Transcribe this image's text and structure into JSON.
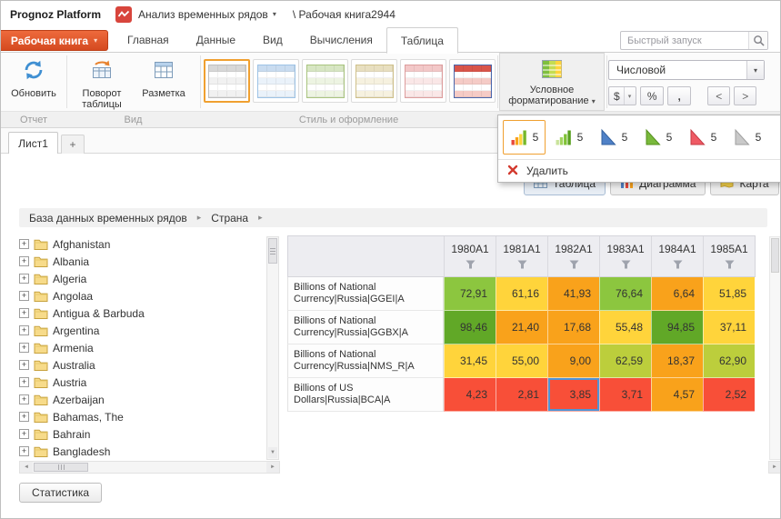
{
  "topbar": {
    "app_title": "Prognoz Platform",
    "module_menu": "Анализ временных рядов",
    "document_path": "\\ Рабочая книга2944"
  },
  "tab_bar": {
    "workbook_button": "Рабочая книга",
    "tabs": [
      {
        "label": "Главная",
        "active": false
      },
      {
        "label": "Данные",
        "active": false
      },
      {
        "label": "Вид",
        "active": false
      },
      {
        "label": "Вычисления",
        "active": false
      },
      {
        "label": "Таблица",
        "active": true
      }
    ],
    "search_placeholder": "Быстрый запуск"
  },
  "ribbon": {
    "refresh_label": "Обновить",
    "pivot_label": "Поворот таблицы",
    "layout_label": "Разметка",
    "conditional_label": "Условное форматирование",
    "group_labels": [
      "Отчет",
      "Вид",
      "Стиль и оформление"
    ],
    "style_gallery": [
      {
        "name": "gray",
        "selected": true,
        "header": "#d8d8d8",
        "row": "#f1f1f1",
        "accent": "#bfbfbf"
      },
      {
        "name": "blue",
        "selected": false,
        "header": "#c9dcf0",
        "row": "#eaf2fa",
        "accent": "#9dc3e6"
      },
      {
        "name": "green",
        "selected": false,
        "header": "#d7e6c3",
        "row": "#edf4e2",
        "accent": "#a9c47f"
      },
      {
        "name": "beige",
        "selected": false,
        "header": "#e8dfc0",
        "row": "#f6f1df",
        "accent": "#cfc08a"
      },
      {
        "name": "pink",
        "selected": false,
        "header": "#f3c8c8",
        "row": "#fae7e7",
        "accent": "#dd9d9d"
      },
      {
        "name": "red",
        "selected": false,
        "header": "#d9554a",
        "row": "#f5cbc6",
        "accent": "#4a66ac"
      }
    ],
    "number_format": {
      "selected_format": "Числовой",
      "currency_label": "$",
      "percent_label": "%",
      "separator_label": ",",
      "decrease_label": "<",
      "increase_label": ">"
    }
  },
  "cf_dropdown": {
    "items": [
      {
        "count": "5",
        "icon": "bars-traffic-icon",
        "selected": true
      },
      {
        "count": "5",
        "icon": "bars-green-icon",
        "selected": false
      },
      {
        "count": "5",
        "icon": "cone-blue-icon",
        "selected": false
      },
      {
        "count": "5",
        "icon": "cone-green-icon",
        "selected": false
      },
      {
        "count": "5",
        "icon": "cone-red-icon",
        "selected": false
      },
      {
        "count": "5",
        "icon": "cone-gray-icon",
        "selected": false
      }
    ],
    "delete_label": "Удалить"
  },
  "sheet_bar": {
    "active_tab": "Лист1",
    "add_tab": "+"
  },
  "view_switcher": [
    {
      "label": "Таблица",
      "selected": true
    },
    {
      "label": "Диаграмма",
      "selected": false
    },
    {
      "label": "Карта",
      "selected": false
    }
  ],
  "breadcrumb": [
    "База данных временных рядов",
    "Страна"
  ],
  "tree": [
    "Afghanistan",
    "Albania",
    "Algeria",
    "Angolaa",
    "Antigua & Barbuda",
    "Argentina",
    "Armenia",
    "Australia",
    "Austria",
    "Azerbaijan",
    "Bahamas, The",
    "Bahrain",
    "Bangladesh"
  ],
  "table": {
    "columns": [
      "1980A1",
      "1981A1",
      "1982A1",
      "1983A1",
      "1984A1",
      "1985A1"
    ],
    "rows": [
      {
        "label": "Billions of National Currency|Russia|GGEI|A",
        "cells": [
          {
            "value": "72,91",
            "bg": "#8cc63f"
          },
          {
            "value": "61,16",
            "bg": "#ffd43b"
          },
          {
            "value": "41,93",
            "bg": "#f9a21b"
          },
          {
            "value": "76,64",
            "bg": "#8cc63f"
          },
          {
            "value": "6,64",
            "bg": "#f9a21b"
          },
          {
            "value": "51,85",
            "bg": "#ffd43b"
          }
        ]
      },
      {
        "label": "Billions of National Currency|Russia|GGBX|A",
        "cells": [
          {
            "value": "98,46",
            "bg": "#61a827"
          },
          {
            "value": "21,40",
            "bg": "#f9a21b"
          },
          {
            "value": "17,68",
            "bg": "#f9a21b"
          },
          {
            "value": "55,48",
            "bg": "#ffd43b"
          },
          {
            "value": "94,85",
            "bg": "#61a827"
          },
          {
            "value": "37,11",
            "bg": "#ffd43b"
          }
        ]
      },
      {
        "label": "Billions of National Currency|Russia|NMS_R|A",
        "cells": [
          {
            "value": "31,45",
            "bg": "#ffd43b"
          },
          {
            "value": "55,00",
            "bg": "#ffd43b"
          },
          {
            "value": "9,00",
            "bg": "#f9a21b"
          },
          {
            "value": "62,59",
            "bg": "#bcce3c"
          },
          {
            "value": "18,37",
            "bg": "#f9a21b"
          },
          {
            "value": "62,90",
            "bg": "#bcce3c"
          }
        ]
      },
      {
        "label": "Billions of US Dollars|Russia|BCA|A",
        "cells": [
          {
            "value": "4,23",
            "bg": "#f84f38"
          },
          {
            "value": "2,81",
            "bg": "#f84f38"
          },
          {
            "value": "3,85",
            "bg": "#f84f38",
            "selected": true
          },
          {
            "value": "3,71",
            "bg": "#f84f38"
          },
          {
            "value": "4,57",
            "bg": "#f9a21b"
          },
          {
            "value": "2,52",
            "bg": "#f84f38"
          }
        ]
      }
    ]
  },
  "footer": {
    "statistics_label": "Статистика"
  },
  "colors": {
    "accent_orange": "#e8612c",
    "selection_blue": "#4f94d6",
    "gallery_selected_border": "#f0a030"
  }
}
